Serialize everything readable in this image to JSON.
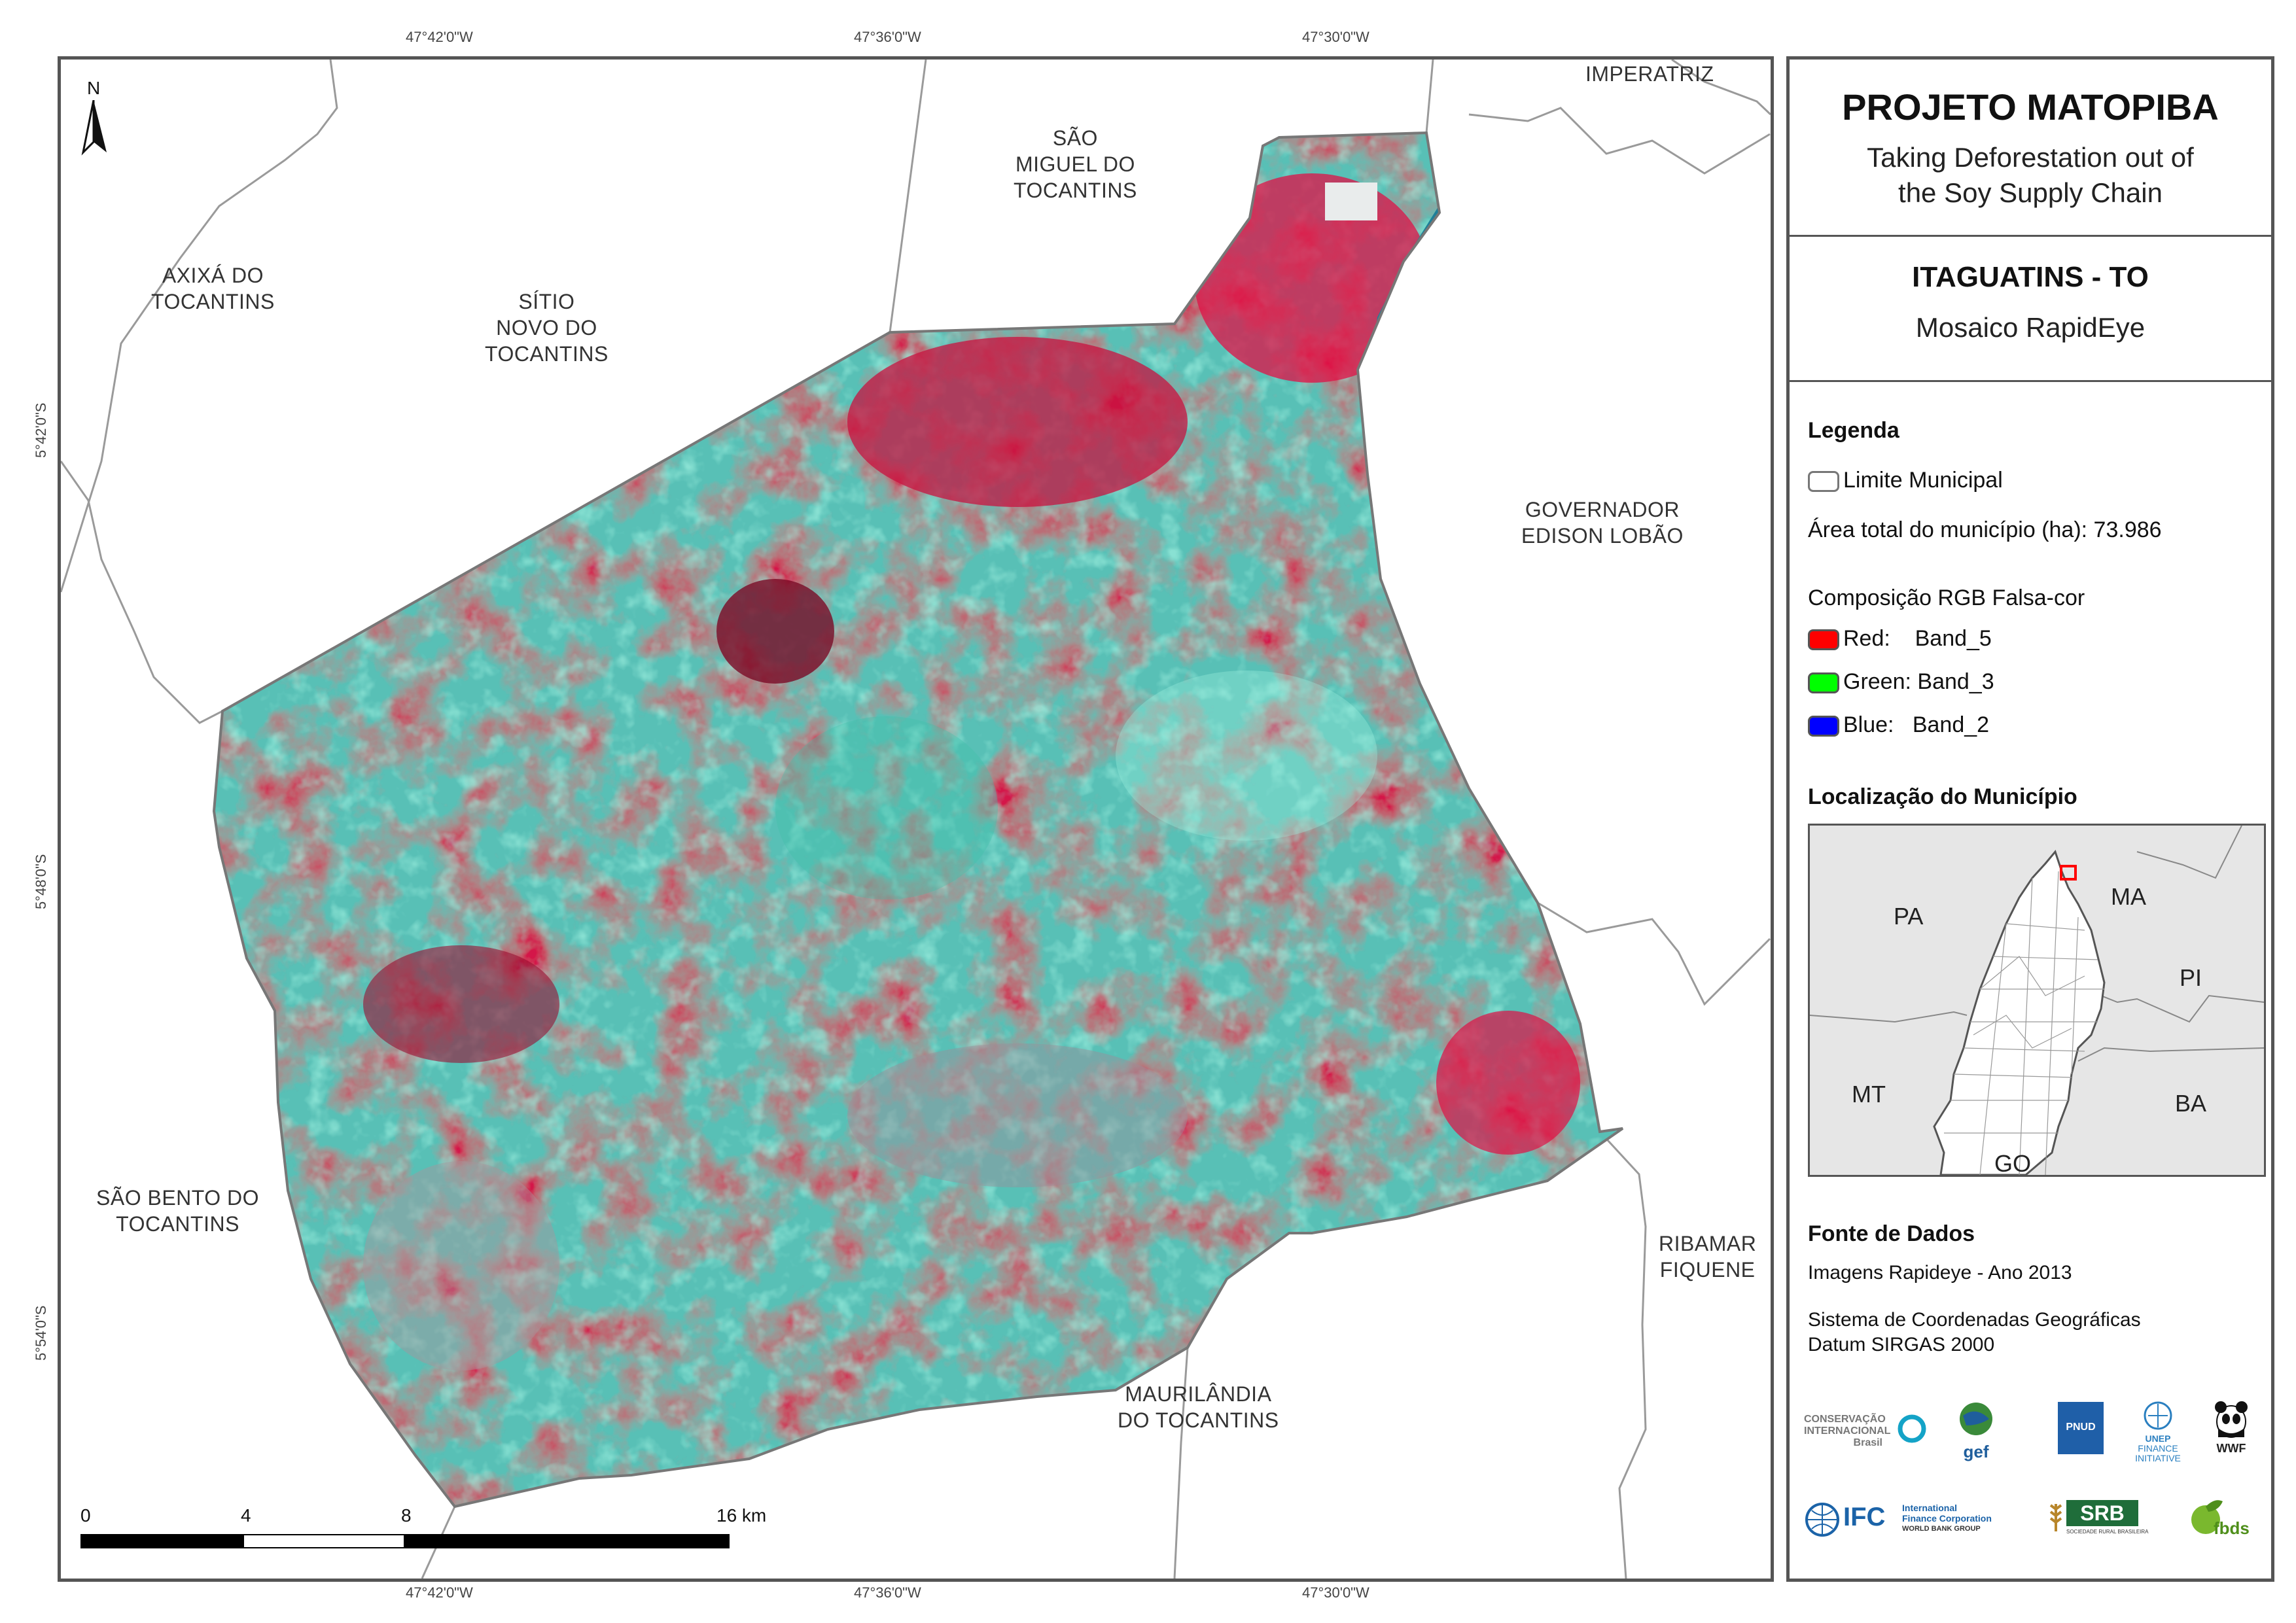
{
  "map": {
    "coords_top": [
      "47°42'0\"W",
      "47°36'0\"W",
      "47°30'0\"W"
    ],
    "coords_bottom": [
      "47°42'0\"W",
      "47°36'0\"W",
      "47°30'0\"W"
    ],
    "coords_left": [
      "5°42'0\"S",
      "5°48'0\"S",
      "5°54'0\"S"
    ],
    "north_label": "N",
    "neighbors": {
      "imperatriz": "IMPERATRIZ",
      "sao_miguel": [
        "SÃO",
        "MIGUEL DO",
        "TOCANTINS"
      ],
      "axixa": [
        "AXIXÁ DO",
        "TOCANTINS"
      ],
      "sitio_novo": [
        "SÍTIO",
        "NOVO DO",
        "TOCANTINS"
      ],
      "governador": [
        "GOVERNADOR",
        "EDISON LOBÃO"
      ],
      "sao_bento": [
        "SÃO BENTO DO",
        "TOCANTINS"
      ],
      "ribamar": [
        "RIBAMAR",
        "FIQUENE"
      ],
      "maurilandia": [
        "MAURILÂNDIA",
        "DO TOCANTINS"
      ]
    },
    "scale": {
      "labels": [
        "0",
        "4",
        "8",
        "16 km"
      ]
    }
  },
  "panel": {
    "title": "PROJETO MATOPIBA",
    "subtitle_1": "Taking Deforestation out of",
    "subtitle_2": "the Soy Supply Chain",
    "place": "ITAGUATINS - TO",
    "mosaic": "Mosaico RapidEye",
    "legend_heading": "Legenda",
    "limite": "Limite Municipal",
    "area": "Área total do município (ha): 73.986",
    "composition": "Composição RGB Falsa-cor",
    "bands": [
      {
        "label": "Red:    Band_5",
        "color": "#ff0000"
      },
      {
        "label": "Green: Band_3",
        "color": "#00ff00"
      },
      {
        "label": "Blue:   Band_2",
        "color": "#0000ff"
      }
    ],
    "location_heading": "Localização do Município",
    "inset_states": [
      "PA",
      "MA",
      "PI",
      "MT",
      "BA",
      "GO"
    ],
    "sources_heading": "Fonte de Dados",
    "source_1": "Imagens Rapideye - Ano 2013",
    "source_2": "Sistema de Coordenadas Geográficas",
    "source_3": "Datum SIRGAS 2000",
    "logos": {
      "ci": [
        "CONSERVAÇÃO",
        "INTERNACIONAL",
        "Brasil"
      ],
      "gef": "gef",
      "pnud": "PNUD",
      "unep": [
        "UNEP",
        "FINANCE",
        "INITIATIVE"
      ],
      "wwf": "WWF",
      "ifc": "IFC",
      "ifc_text": [
        "International",
        "Finance Corporation",
        "WORLD BANK GROUP"
      ],
      "srb": "SRB",
      "srb_sub": "SOCIEDADE RURAL BRASILEIRA",
      "fbds": "fbds"
    }
  }
}
